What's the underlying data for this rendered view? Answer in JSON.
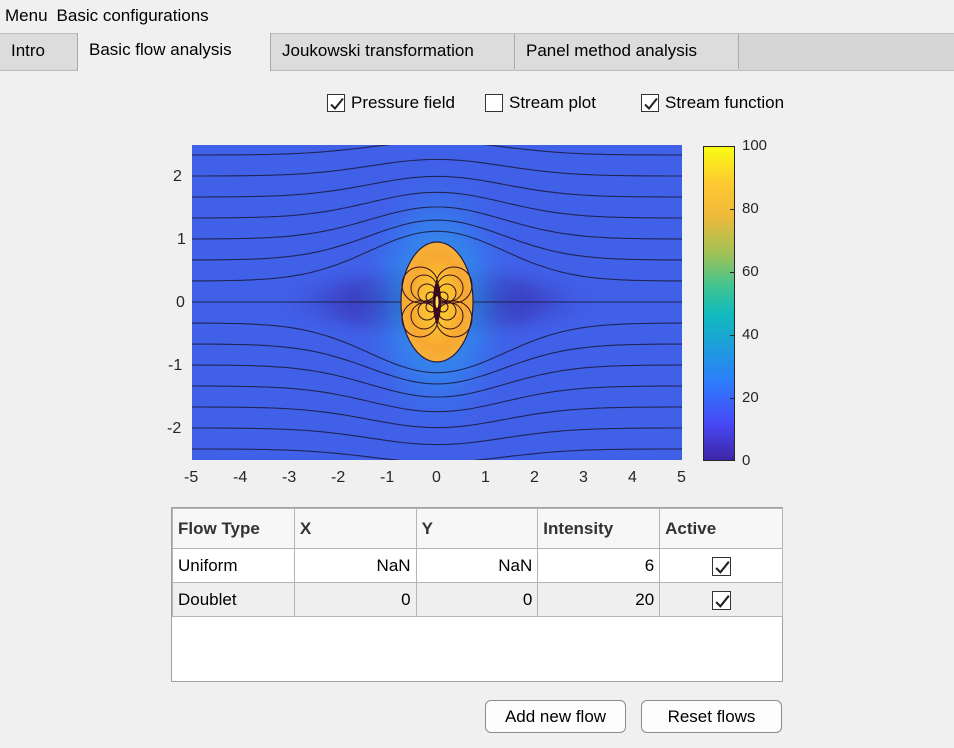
{
  "menubar": {
    "menu": "Menu",
    "basic": "Basic configurations"
  },
  "tabs": [
    {
      "label": "Intro",
      "active": false
    },
    {
      "label": "Basic flow analysis",
      "active": true
    },
    {
      "label": "Joukowski transformation",
      "active": false
    },
    {
      "label": "Panel method analysis",
      "active": false
    }
  ],
  "options": {
    "pressure_field": {
      "label": "Pressure field",
      "checked": true
    },
    "stream_plot": {
      "label": "Stream plot",
      "checked": false
    },
    "stream_function": {
      "label": "Stream function",
      "checked": true
    }
  },
  "plot": {
    "x_ticks": [
      "-5",
      "-4",
      "-3",
      "-2",
      "-1",
      "0",
      "1",
      "2",
      "3",
      "4",
      "5"
    ],
    "y_ticks": [
      "2",
      "1",
      "0",
      "-1",
      "-2"
    ],
    "colorbar_ticks": [
      "100",
      "80",
      "60",
      "40",
      "20",
      "0"
    ]
  },
  "chart_data": {
    "type": "heatmap",
    "title": "",
    "xlabel": "",
    "ylabel": "",
    "xlim": [
      -5,
      5
    ],
    "ylim": [
      -2.5,
      2.5
    ],
    "clim": [
      0,
      100
    ],
    "colormap": "parula",
    "overlay": "stream function contour lines"
  },
  "table": {
    "headers": [
      "Flow Type",
      "X",
      "Y",
      "Intensity",
      "Active"
    ],
    "rows": [
      {
        "type": "Uniform",
        "x": "NaN",
        "y": "NaN",
        "intensity": "6",
        "active": true
      },
      {
        "type": "Doublet",
        "x": "0",
        "y": "0",
        "intensity": "20",
        "active": true
      }
    ]
  },
  "buttons": {
    "add": "Add new flow",
    "reset": "Reset flows"
  },
  "colors": {
    "bg": "#f0f0f0",
    "tab_bar": "#d6d6d6",
    "field_base": "#4060e8"
  }
}
